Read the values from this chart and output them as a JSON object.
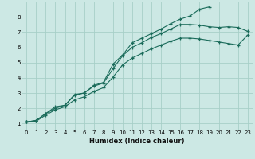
{
  "xlabel": "Humidex (Indice chaleur)",
  "background_color": "#cce8e4",
  "grid_color": "#a8cfc8",
  "line_color": "#1a6b5a",
  "xlim": [
    -0.5,
    23.5
  ],
  "ylim": [
    0.6,
    9.0
  ],
  "xticks": [
    0,
    1,
    2,
    3,
    4,
    5,
    6,
    7,
    8,
    9,
    10,
    11,
    12,
    13,
    14,
    15,
    16,
    17,
    18,
    19,
    20,
    21,
    22,
    23
  ],
  "yticks": [
    1,
    2,
    3,
    4,
    5,
    6,
    7,
    8
  ],
  "curve1_x": [
    0,
    1,
    2,
    3,
    4,
    5,
    6,
    7,
    8,
    9,
    10,
    11,
    12,
    13,
    14,
    15,
    16,
    17,
    18,
    19
  ],
  "curve1_y": [
    1.1,
    1.2,
    1.65,
    2.1,
    2.2,
    2.9,
    3.0,
    3.5,
    3.7,
    4.9,
    5.5,
    6.3,
    6.6,
    6.9,
    7.2,
    7.55,
    7.85,
    8.05,
    8.5,
    8.65
  ],
  "curve2_x": [
    0,
    1,
    2,
    3,
    4,
    5,
    6,
    7,
    8,
    9,
    10,
    11,
    12,
    13,
    14,
    15,
    16,
    17,
    18,
    19,
    20,
    21,
    22,
    23
  ],
  "curve2_y": [
    1.1,
    1.2,
    1.65,
    2.0,
    2.2,
    2.85,
    3.0,
    3.45,
    3.65,
    4.6,
    5.45,
    6.0,
    6.3,
    6.65,
    6.9,
    7.2,
    7.5,
    7.5,
    7.45,
    7.35,
    7.3,
    7.35,
    7.3,
    7.05
  ],
  "curve3_x": [
    0,
    1,
    2,
    3,
    4,
    5,
    6,
    7,
    8,
    9,
    10,
    11,
    12,
    13,
    14,
    15,
    16,
    17,
    18,
    19,
    20,
    21,
    22,
    23
  ],
  "curve3_y": [
    1.1,
    1.15,
    1.55,
    1.9,
    2.1,
    2.55,
    2.75,
    3.1,
    3.35,
    4.05,
    4.85,
    5.3,
    5.6,
    5.9,
    6.15,
    6.4,
    6.6,
    6.6,
    6.55,
    6.45,
    6.35,
    6.25,
    6.15,
    6.8
  ]
}
